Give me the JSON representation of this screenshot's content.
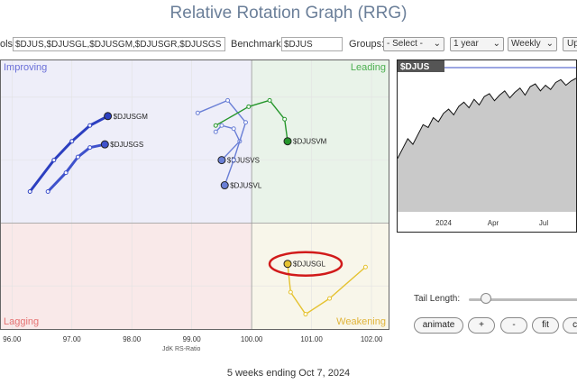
{
  "page": {
    "title": "Relative Rotation Graph (RRG)",
    "footer": "5 weeks ending Oct 7, 2024"
  },
  "toolbar": {
    "symbols_label": "ols:",
    "symbols_value": "$DJUS,$DJUSGL,$DJUSGM,$DJUSGR,$DJUSGS",
    "benchmark_label": "Benchmark:",
    "benchmark_value": "$DJUS",
    "groups_label": "Groups:",
    "groups_value": "- Select -",
    "period_value": "1 year",
    "frequency_value": "Weekly",
    "update_label": "Up"
  },
  "controls": {
    "tail_length_label": "Tail Length:",
    "tail_length_value": 5,
    "buttons": [
      "animate",
      "+",
      "-",
      "fit",
      "ct"
    ]
  },
  "colors": {
    "improving": "#eeeef9",
    "leading": "#e9f3e9",
    "lagging": "#f9e9e9",
    "weakening": "#f8f6ea",
    "highlight_ring": "#d11a1a"
  },
  "chart_data": [
    {
      "type": "scatter",
      "xlabel": "JdK RS-Ratio",
      "xlim": [
        95.8,
        102.3
      ],
      "ylim": [
        98.3,
        102.6
      ],
      "x_ticks": [
        "96.00",
        "97.00",
        "98.00",
        "99.00",
        "100.00",
        "101.00",
        "102.00"
      ],
      "quadrants": {
        "improving": "Improving",
        "leading": "Leading",
        "lagging": "Lagging",
        "weakening": "Weakening"
      },
      "series": [
        {
          "name": "$DJUSGM",
          "color": "#2c3fc0",
          "bold": true,
          "x": [
            96.3,
            96.7,
            97.0,
            97.3,
            97.6
          ],
          "y": [
            100.5,
            101.0,
            101.3,
            101.55,
            101.7
          ]
        },
        {
          "name": "$DJUSGS",
          "color": "#3f52cc",
          "bold": true,
          "x": [
            96.6,
            96.9,
            97.1,
            97.3,
            97.55
          ],
          "y": [
            100.5,
            100.8,
            101.05,
            101.2,
            101.25
          ]
        },
        {
          "name": "$DJUSVS",
          "color": "#6a7fd6",
          "bold": false,
          "x": [
            99.4,
            99.5,
            99.7,
            99.8,
            99.5
          ],
          "y": [
            101.45,
            101.55,
            101.5,
            101.3,
            101.0
          ]
        },
        {
          "name": "$DJUSVL",
          "color": "#6a7fd6",
          "bold": false,
          "x": [
            99.1,
            99.6,
            99.9,
            99.7,
            99.55
          ],
          "y": [
            101.75,
            101.95,
            101.6,
            101.0,
            100.6
          ]
        },
        {
          "name": "$DJUSVM",
          "color": "#25962b",
          "bold": false,
          "x": [
            99.4,
            99.95,
            100.3,
            100.55,
            100.6
          ],
          "y": [
            101.55,
            101.85,
            101.95,
            101.65,
            101.3
          ]
        },
        {
          "name": "$DJUSGL",
          "color": "#e5c230",
          "bold": false,
          "x": [
            101.9,
            101.3,
            100.9,
            100.65,
            100.6
          ],
          "y": [
            99.3,
            98.8,
            98.55,
            98.9,
            99.35
          ]
        }
      ],
      "highlight": "$DJUSGL"
    },
    {
      "type": "area",
      "title": "$DJUS",
      "x_ticks": [
        "2024",
        "Apr",
        "Jul"
      ],
      "values": [
        0.62,
        0.55,
        0.48,
        0.52,
        0.45,
        0.38,
        0.4,
        0.33,
        0.36,
        0.3,
        0.27,
        0.31,
        0.25,
        0.22,
        0.26,
        0.2,
        0.24,
        0.18,
        0.16,
        0.21,
        0.17,
        0.14,
        0.19,
        0.15,
        0.12,
        0.17,
        0.11,
        0.09,
        0.14,
        0.1,
        0.13,
        0.08,
        0.06,
        0.1,
        0.07,
        0.05
      ]
    }
  ]
}
